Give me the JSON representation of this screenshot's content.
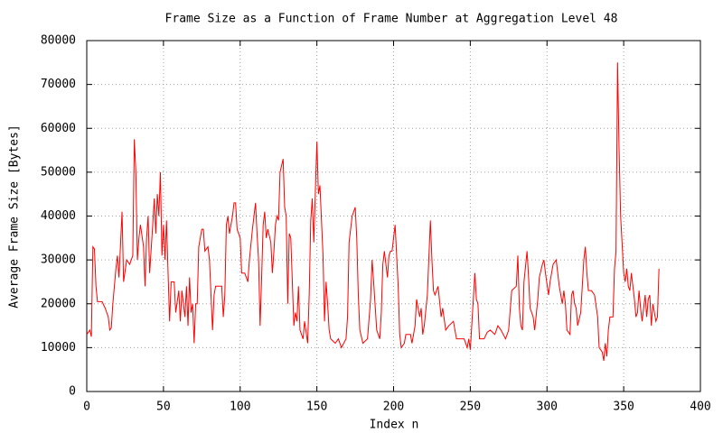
{
  "chart_data": {
    "type": "line",
    "title": "Frame Size as a Function of Frame Number at Aggregation Level 48",
    "x_label": "Index n",
    "y_label": "Average Frame Size [Bytes]",
    "xlim": [
      0,
      400
    ],
    "ylim": [
      0,
      80000
    ],
    "xticks": [
      0,
      50,
      100,
      150,
      200,
      250,
      300,
      350,
      400
    ],
    "yticks": [
      0,
      10000,
      20000,
      30000,
      40000,
      50000,
      60000,
      70000,
      80000
    ],
    "grid": true,
    "x": [
      0,
      2,
      3,
      4,
      5,
      6,
      7,
      10,
      12,
      14,
      15,
      16,
      17,
      19,
      20,
      21,
      23,
      24,
      26,
      28,
      30,
      31,
      32,
      33,
      34,
      35,
      37,
      38,
      39,
      40,
      41,
      43,
      44,
      45,
      46,
      47,
      48,
      49,
      50,
      51,
      52,
      53,
      54,
      55,
      57,
      58,
      60,
      61,
      62,
      64,
      65,
      66,
      67,
      68,
      69,
      70,
      71,
      72,
      73,
      75,
      76,
      77,
      79,
      80,
      82,
      83,
      84,
      86,
      88,
      89,
      90,
      91,
      92,
      93,
      95,
      96,
      97,
      98,
      100,
      101,
      103,
      105,
      106,
      108,
      110,
      111,
      112,
      113,
      114,
      115,
      116,
      117,
      118,
      120,
      121,
      122,
      123,
      124,
      125,
      126,
      128,
      129,
      130,
      131,
      132,
      133,
      135,
      136,
      137,
      138,
      139,
      140,
      141,
      142,
      144,
      145,
      146,
      147,
      148,
      150,
      151,
      152,
      154,
      155,
      156,
      157,
      158,
      159,
      162,
      164,
      166,
      169,
      170,
      171,
      173,
      175,
      176,
      177,
      178,
      180,
      183,
      185,
      186,
      187,
      189,
      191,
      192,
      193,
      194,
      196,
      197,
      198,
      199,
      201,
      203,
      204,
      205,
      207,
      208,
      211,
      212,
      214,
      215,
      217,
      218,
      219,
      220,
      222,
      224,
      225,
      226,
      227,
      229,
      231,
      232,
      234,
      236,
      239,
      241,
      243,
      246,
      248,
      249,
      250,
      253,
      254,
      255,
      256,
      259,
      261,
      263,
      266,
      268,
      270,
      273,
      275,
      277,
      280,
      281,
      282,
      283,
      284,
      285,
      287,
      288,
      289,
      291,
      292,
      294,
      295,
      297,
      298,
      299,
      301,
      302,
      303,
      304,
      306,
      308,
      309,
      310,
      311,
      312,
      313,
      315,
      316,
      317,
      318,
      319,
      320,
      322,
      323,
      324,
      325,
      326,
      327,
      329,
      331,
      333,
      334,
      336,
      337,
      338,
      339,
      340,
      341,
      343,
      344,
      345,
      346,
      347,
      348,
      350,
      351,
      352,
      353,
      354,
      355,
      357,
      358,
      359,
      360,
      361,
      362,
      364,
      365,
      366,
      367,
      368,
      369,
      371,
      372,
      373
    ],
    "series": [
      {
        "name": "frame size",
        "color": "#ff0000",
        "values": [
          13000,
          14000,
          12500,
          33000,
          32500,
          24000,
          20500,
          20500,
          19000,
          17000,
          14000,
          14500,
          20000,
          28000,
          31000,
          26000,
          41000,
          25000,
          30000,
          29000,
          31000,
          57500,
          50000,
          30000,
          35000,
          38000,
          33000,
          24000,
          35000,
          40000,
          27000,
          38000,
          44000,
          36000,
          45000,
          40000,
          50000,
          31000,
          38000,
          30000,
          39000,
          27000,
          16000,
          25000,
          25000,
          18000,
          23000,
          16000,
          23000,
          17000,
          24000,
          15000,
          26000,
          18000,
          20000,
          11000,
          20000,
          20000,
          33000,
          37000,
          37000,
          32000,
          33000,
          30000,
          14000,
          22000,
          24000,
          24000,
          24000,
          17000,
          22000,
          38000,
          40000,
          36000,
          40000,
          43000,
          43000,
          37000,
          35000,
          27000,
          27000,
          25000,
          30000,
          37000,
          43000,
          36000,
          30000,
          15000,
          26000,
          38000,
          41000,
          35000,
          37000,
          34000,
          27000,
          32000,
          38000,
          40000,
          39000,
          50000,
          53000,
          42000,
          40000,
          20000,
          36000,
          35000,
          15000,
          18000,
          16000,
          24000,
          14000,
          13000,
          12000,
          16000,
          11000,
          22000,
          39000,
          44000,
          34000,
          57000,
          45000,
          47000,
          31000,
          16000,
          25000,
          20000,
          14000,
          12000,
          11000,
          12000,
          10000,
          12000,
          17000,
          34000,
          40000,
          42000,
          35000,
          22000,
          14000,
          11000,
          12000,
          21000,
          30000,
          25000,
          14000,
          12000,
          18000,
          29000,
          32000,
          26000,
          31000,
          32000,
          32000,
          38000,
          24000,
          13000,
          10000,
          11000,
          13000,
          13000,
          11000,
          15000,
          21000,
          17000,
          19000,
          13000,
          15000,
          22000,
          39000,
          30000,
          23000,
          22000,
          24000,
          17000,
          19000,
          14000,
          15000,
          16000,
          12000,
          12000,
          12000,
          10000,
          12000,
          9500,
          27000,
          21000,
          20000,
          12000,
          12000,
          13500,
          14000,
          13000,
          15000,
          14000,
          12000,
          14000,
          23000,
          24000,
          31000,
          19000,
          15000,
          14000,
          25000,
          32000,
          26000,
          19000,
          17000,
          14000,
          21000,
          26000,
          29000,
          30000,
          27000,
          22000,
          25000,
          27000,
          29000,
          30000,
          24000,
          22000,
          20000,
          23000,
          20000,
          14000,
          13000,
          22000,
          23000,
          20000,
          19000,
          15000,
          18000,
          24000,
          30000,
          33000,
          27000,
          23000,
          23000,
          22000,
          17000,
          10000,
          9000,
          7000,
          11000,
          8000,
          14000,
          17000,
          17000,
          28000,
          32000,
          75000,
          55000,
          40000,
          27000,
          25000,
          28000,
          24000,
          23000,
          27000,
          21000,
          17000,
          18000,
          23000,
          19000,
          16000,
          22000,
          17000,
          21000,
          22000,
          15000,
          20000,
          16000,
          17000,
          28000
        ]
      }
    ]
  }
}
